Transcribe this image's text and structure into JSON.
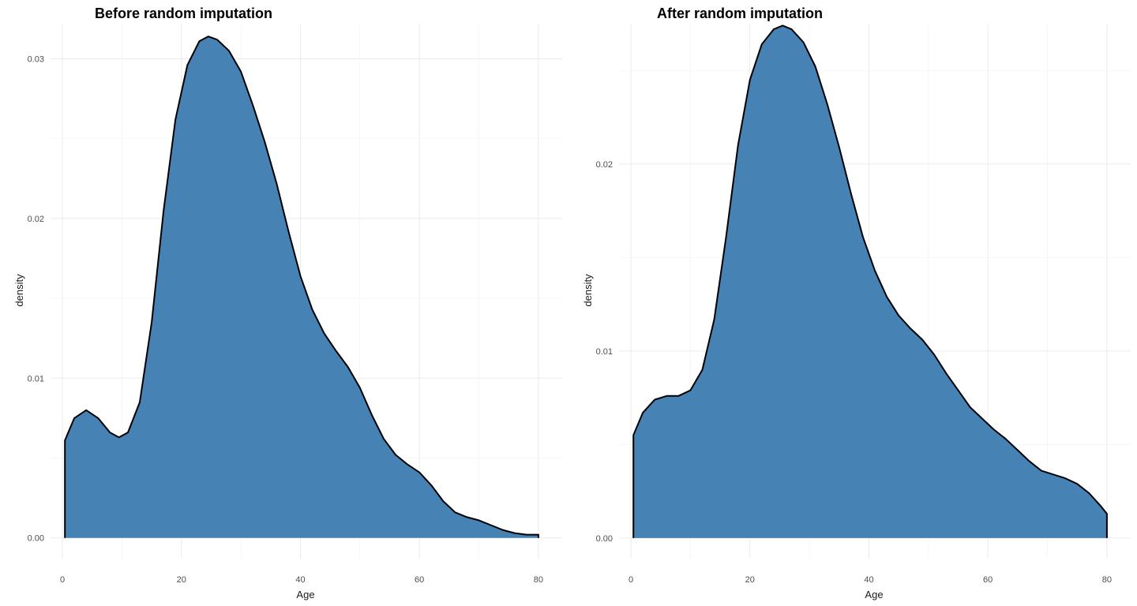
{
  "chart_data": [
    {
      "type": "area",
      "title": "Before random imputation",
      "xlabel": "Age",
      "ylabel": "density",
      "xlim": [
        -2,
        84
      ],
      "ylim": [
        -0.0013,
        0.0322
      ],
      "x_ticks": [
        0,
        20,
        40,
        60,
        80
      ],
      "x_tick_labels": [
        "0",
        "20",
        "40",
        "60",
        "80"
      ],
      "y_ticks": [
        0,
        0.01,
        0.02,
        0.03
      ],
      "y_tick_labels": [
        "0.00",
        "0.01",
        "0.02",
        "0.03"
      ],
      "grid": true,
      "legend": "none",
      "fill_color": "#4682b4",
      "line_color": "#000000",
      "series": [
        {
          "x": [
            0.42,
            2,
            4,
            6,
            8,
            9.5,
            11,
            13,
            15,
            17,
            19,
            21,
            23,
            24.5,
            26,
            28,
            30,
            32,
            34,
            36,
            38,
            40,
            42,
            44,
            46,
            48,
            50,
            52,
            54,
            56,
            58,
            60,
            62,
            64,
            66,
            68,
            70,
            72,
            74,
            76,
            78,
            80
          ],
          "y": [
            0.0061,
            0.0075,
            0.008,
            0.0075,
            0.0066,
            0.0063,
            0.0066,
            0.0085,
            0.0135,
            0.0205,
            0.0262,
            0.0296,
            0.0311,
            0.0314,
            0.0312,
            0.0305,
            0.0292,
            0.0271,
            0.0248,
            0.0222,
            0.0192,
            0.0164,
            0.0143,
            0.0128,
            0.0117,
            0.0107,
            0.0094,
            0.0077,
            0.0062,
            0.0052,
            0.0046,
            0.0041,
            0.0033,
            0.0023,
            0.0016,
            0.0013,
            0.0011,
            0.0008,
            0.0005,
            0.0003,
            0.0002,
            0.0002
          ]
        }
      ]
    },
    {
      "type": "area",
      "title": "After random imputation",
      "xlabel": "Age",
      "ylabel": "density",
      "xlim": [
        -2,
        84
      ],
      "ylim": [
        -0.0011,
        0.0275
      ],
      "x_ticks": [
        0,
        20,
        40,
        60,
        80
      ],
      "x_tick_labels": [
        "0",
        "20",
        "40",
        "60",
        "80"
      ],
      "y_ticks": [
        0,
        0.01,
        0.02
      ],
      "y_tick_labels": [
        "0.00",
        "0.01",
        "0.02"
      ],
      "grid": true,
      "legend": "none",
      "fill_color": "#4682b4",
      "line_color": "#000000",
      "series": [
        {
          "x": [
            0.42,
            2,
            4,
            6,
            8,
            10,
            12,
            14,
            16,
            18,
            20,
            22,
            24,
            25.5,
            27,
            29,
            31,
            33,
            35,
            37,
            39,
            41,
            43,
            45,
            47,
            49,
            51,
            53,
            55,
            57,
            59,
            61,
            63,
            65,
            67,
            69,
            71,
            73,
            75,
            77,
            79,
            80
          ],
          "y": [
            0.0055,
            0.0067,
            0.0074,
            0.0076,
            0.0076,
            0.0079,
            0.009,
            0.0117,
            0.0161,
            0.021,
            0.0245,
            0.0264,
            0.0272,
            0.0274,
            0.0272,
            0.0265,
            0.0252,
            0.0232,
            0.0209,
            0.0184,
            0.0161,
            0.0143,
            0.0129,
            0.0119,
            0.0112,
            0.0106,
            0.0098,
            0.0088,
            0.0079,
            0.007,
            0.0064,
            0.0058,
            0.0053,
            0.0047,
            0.0041,
            0.0036,
            0.0034,
            0.0032,
            0.0029,
            0.0024,
            0.0017,
            0.0013
          ]
        }
      ]
    }
  ]
}
